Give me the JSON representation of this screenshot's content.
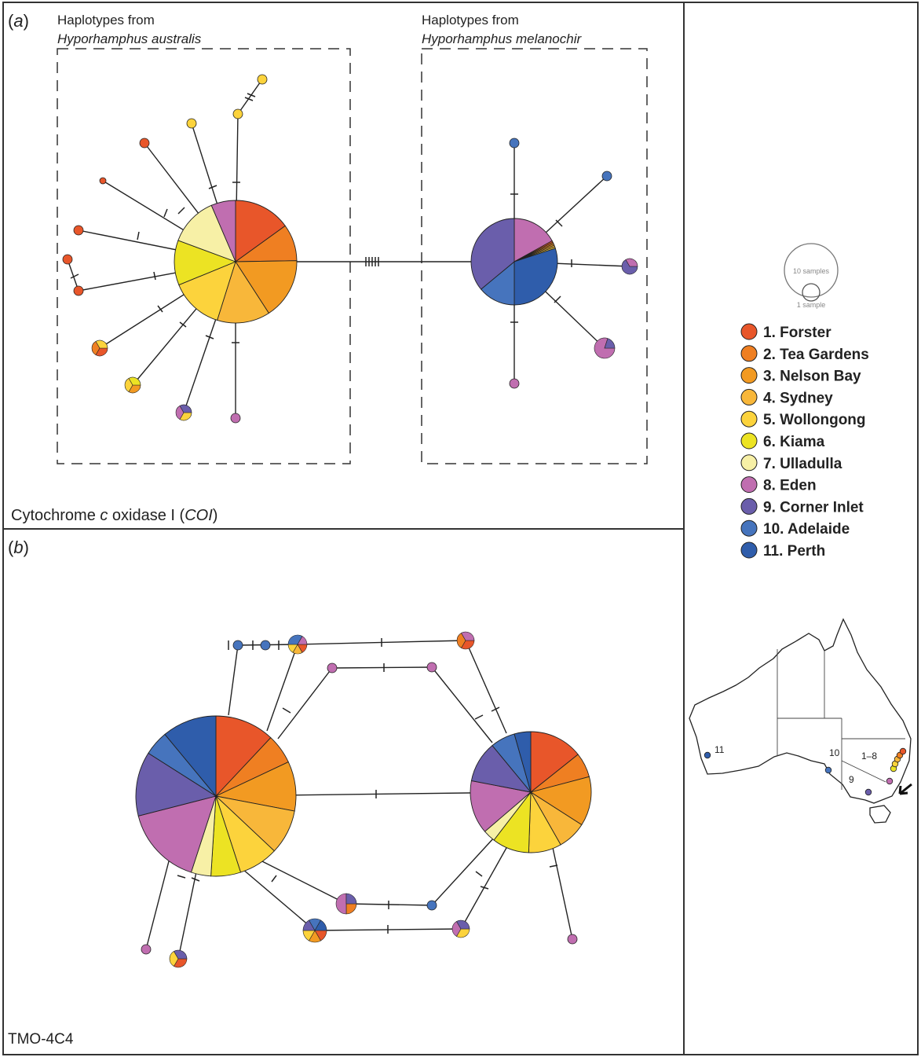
{
  "panel_a": {
    "label": "(a)",
    "group1": {
      "line1": "Haplotypes from",
      "species": "Hyporhamphus australis"
    },
    "group2": {
      "line1": "Haplotypes from",
      "species": "Hyporhamphus melanochir"
    },
    "marker_prefix": "Cytochrome ",
    "marker_c": "c",
    "marker_mid": " oxidase I (",
    "marker_abbr": "COI",
    "marker_end": ")"
  },
  "panel_b": {
    "label": "(b)",
    "marker": "TMO-4C4"
  },
  "scale": {
    "large": "10 samples",
    "small": "1 sample"
  },
  "legend": [
    {
      "label": "1. Forster",
      "color": "#e8562a"
    },
    {
      "label": "2. Tea Gardens",
      "color": "#ef7f22"
    },
    {
      "label": "3. Nelson Bay",
      "color": "#f29a22"
    },
    {
      "label": "4. Sydney",
      "color": "#f8b73a"
    },
    {
      "label": "5. Wollongong",
      "color": "#fcd33c"
    },
    {
      "label": "6. Kiama",
      "color": "#ece323"
    },
    {
      "label": "7. Ulladulla",
      "color": "#f7f0a6"
    },
    {
      "label": "8. Eden",
      "color": "#c06eb0"
    },
    {
      "label": "9. Corner Inlet",
      "color": "#6a5eab"
    },
    {
      "label": "10. Adelaide",
      "color": "#4674bd"
    },
    {
      "label": "11. Perth",
      "color": "#2f5dab"
    }
  ],
  "map_labels": [
    "11",
    "10",
    "9",
    "1–8"
  ]
}
